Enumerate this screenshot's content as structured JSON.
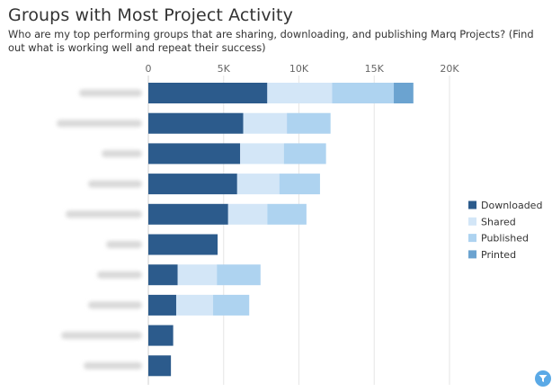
{
  "header": {
    "title": "Groups with Most Project Activity",
    "subtitle": "Who are my top performing groups that are sharing, downloading, and publishing Marq Projects? (Find out what is working well and repeat their success)"
  },
  "chart_data": {
    "type": "bar",
    "orientation": "horizontal",
    "stacked": true,
    "x_ticks": [
      "0",
      "5K",
      "10K",
      "15K",
      "20K"
    ],
    "xlim": [
      0,
      20000
    ],
    "grid": true,
    "legend_position": "right",
    "category_labels_obscured": true,
    "categories": [
      "",
      "",
      "",
      "",
      "",
      "",
      "",
      "",
      "",
      ""
    ],
    "series": [
      {
        "name": "Downloaded",
        "color": "#2c5b8c",
        "values": [
          7900,
          6300,
          6100,
          5900,
          5300,
          4600,
          1950,
          1850,
          1650,
          1500
        ]
      },
      {
        "name": "Shared",
        "color": "#d3e6f7",
        "values": [
          4300,
          2900,
          2900,
          2800,
          2600,
          0,
          2600,
          2450,
          0,
          0
        ]
      },
      {
        "name": "Published",
        "color": "#aed3f0",
        "values": [
          4100,
          2900,
          2800,
          2700,
          2600,
          0,
          2900,
          2400,
          0,
          0
        ]
      },
      {
        "name": "Printed",
        "color": "#6ba3d0",
        "values": [
          1300,
          0,
          0,
          0,
          0,
          0,
          0,
          0,
          0,
          0
        ]
      }
    ]
  },
  "icons": {
    "filter": "filter-icon"
  }
}
